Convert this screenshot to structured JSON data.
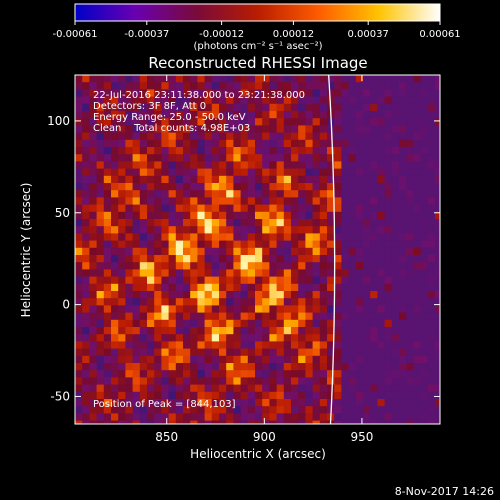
{
  "chart_data": {
    "type": "heatmap",
    "title": "Reconstructed RHESSI Image",
    "xlabel": "Heliocentric X (arcsec)",
    "ylabel": "Heliocentric Y (arcsec)",
    "xlim": [
      803,
      990
    ],
    "ylim": [
      -65,
      125
    ],
    "x_ticks": [
      850,
      900,
      950
    ],
    "y_ticks": [
      -50,
      0,
      50,
      100
    ],
    "colorbar": {
      "range": [
        -0.00061,
        0.00061
      ],
      "tick_values": [
        -0.00061,
        -0.00037,
        -0.00012,
        0.00012,
        0.00037,
        0.00061
      ],
      "tick_labels": [
        "-0.00061",
        "-0.00037",
        "-0.00012",
        "0.00012",
        "0.00037",
        "0.00061"
      ],
      "unit_label": "(photons cm⁻² s⁻¹ asec⁻²)",
      "colors": [
        "#0000c8",
        "#6a00b0",
        "#7a0a3a",
        "#b81d00",
        "#ff5b00",
        "#ffc400",
        "#ffffff"
      ]
    },
    "annotations": [
      "22-Jul-2016 23:11:38.000 to 23:21:38.000",
      "Detectors: 3F 8F, Att 0",
      "Energy Range: 25.0 - 50.0 keV",
      "Clean    Total counts: 4.98E+03",
      "Position of Peak = [844,103]"
    ],
    "limb_color": "#ffffff",
    "grid": false
  },
  "footer_timestamp": "8-Nov-2017 14:26"
}
